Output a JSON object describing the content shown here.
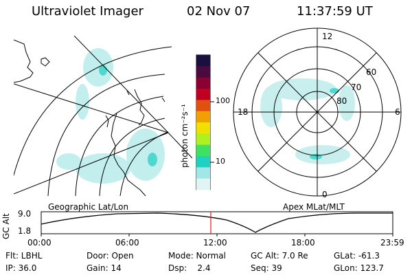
{
  "header": {
    "title": "Ultraviolet Imager",
    "date": "02 Nov 07",
    "time": "11:37:59 UT"
  },
  "geo_map": {
    "label": "Geographic Lat/Lon"
  },
  "polar_map": {
    "label": "Apex MLat/MLT",
    "mlt_labels": {
      "top": "12",
      "left": "18",
      "right": "6",
      "bottom": "0"
    },
    "lat_labels": [
      "60",
      "70",
      "80"
    ]
  },
  "colorbar": {
    "unit_label": "photon cm⁻²s⁻¹",
    "ticks": [
      "100",
      "10"
    ],
    "colors": [
      "#1a1040",
      "#4a0a40",
      "#8a0030",
      "#c00020",
      "#e05010",
      "#f0a000",
      "#f0e000",
      "#b0f020",
      "#40e060",
      "#20d0c0",
      "#a0e8e8",
      "#e0f4f4"
    ]
  },
  "altitude_plot": {
    "ylabel": "GC Alt",
    "ymax_label": "9.0",
    "ymin_label": "1.8",
    "xticks": [
      "00:00",
      "06:00",
      "12:00",
      "18:00",
      "23:59"
    ],
    "cursor_color": "#d02020"
  },
  "info": {
    "flt": "Flt: LBHL",
    "ip": "IP: 36.0",
    "door": "Door: Open",
    "gain": "Gain: 14",
    "mode": "Mode: Normal",
    "dsp": "Dsp:    2.4",
    "gcalt": "GC Alt: 7.0 Re",
    "seq": "Seq: 39",
    "glat": "GLat: -61.3",
    "glon": "GLon: 123.7"
  }
}
